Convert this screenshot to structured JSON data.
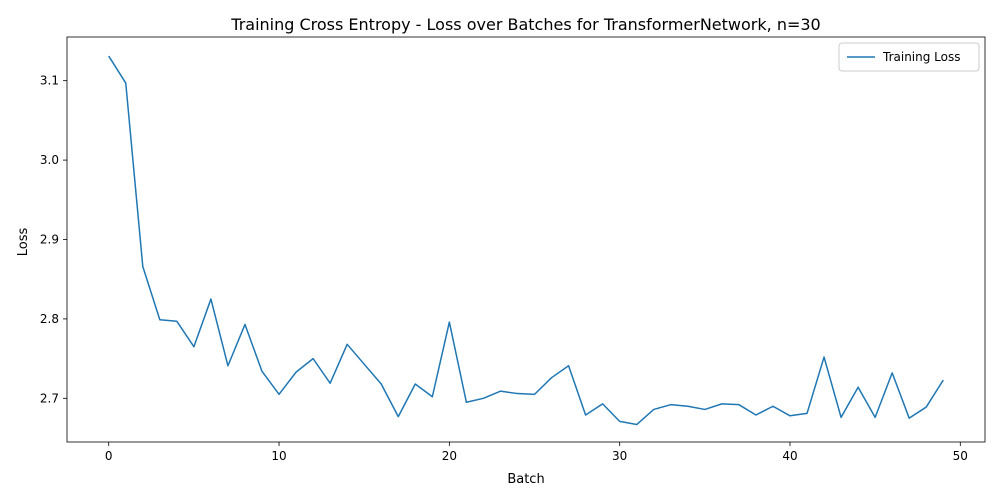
{
  "chart_data": {
    "type": "line",
    "title": "Training Cross Entropy - Loss over Batches for TransformerNetwork, n=30",
    "xlabel": "Batch",
    "ylabel": "Loss",
    "xlim": [
      -2.45,
      51.45
    ],
    "ylim": [
      2.645,
      3.155
    ],
    "x_ticks": [
      0,
      10,
      20,
      30,
      40,
      50
    ],
    "y_ticks": [
      2.7,
      2.8,
      2.9,
      3.0,
      3.1
    ],
    "x_tick_labels": [
      "0",
      "10",
      "20",
      "30",
      "40",
      "50"
    ],
    "y_tick_labels": [
      "2.7",
      "2.8",
      "2.9",
      "3.0",
      "3.1"
    ],
    "grid": false,
    "legend": {
      "position": "top-right"
    },
    "series": [
      {
        "name": "Training Loss",
        "color": "#1f77b4",
        "x": [
          0,
          1,
          2,
          3,
          4,
          5,
          6,
          7,
          8,
          9,
          10,
          11,
          12,
          13,
          14,
          15,
          16,
          17,
          18,
          19,
          20,
          21,
          22,
          23,
          24,
          25,
          26,
          27,
          28,
          29,
          30,
          31,
          32,
          33,
          34,
          35,
          36,
          37,
          38,
          39,
          40,
          41,
          42,
          43,
          44,
          45,
          46,
          47,
          48,
          49
        ],
        "values": [
          3.131,
          3.097,
          2.866,
          2.799,
          2.797,
          2.765,
          2.825,
          2.741,
          2.793,
          2.734,
          2.705,
          2.733,
          2.75,
          2.719,
          2.768,
          2.743,
          2.718,
          2.677,
          2.718,
          2.702,
          2.796,
          2.695,
          2.7,
          2.709,
          2.706,
          2.705,
          2.726,
          2.741,
          2.679,
          2.693,
          2.671,
          2.667,
          2.686,
          2.692,
          2.69,
          2.686,
          2.693,
          2.692,
          2.679,
          2.69,
          2.678,
          2.681,
          2.752,
          2.676,
          2.714,
          2.676,
          2.732,
          2.675,
          2.689,
          2.723
        ]
      }
    ]
  }
}
